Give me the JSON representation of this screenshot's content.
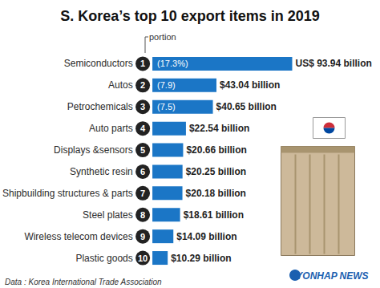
{
  "chart_data": {
    "type": "bar",
    "title": "S. Korea’s top 10 export items in 2019",
    "orientation": "horizontal",
    "categories": [
      "Semiconductors",
      "Autos",
      "Petrochemicals",
      "Auto parts",
      "Displays &sensors",
      "Synthetic resin",
      "Shipbuilding structures & parts",
      "Steel plates",
      "Wireless telecom devices",
      "Plastic goods"
    ],
    "ranks": [
      1,
      2,
      3,
      4,
      5,
      6,
      7,
      8,
      9,
      10
    ],
    "values": [
      93.94,
      43.04,
      40.65,
      22.54,
      20.66,
      20.25,
      20.18,
      18.61,
      14.09,
      10.29
    ],
    "value_labels": [
      "US$ 93.94 billion",
      "$43.04 billion",
      "$40.65 billion",
      "$22.54 billion",
      "$20.66 billion",
      "$20.25 billion",
      "$20.18 billion",
      "$18.61 billion",
      "$14.09 billion",
      "$10.29 billion"
    ],
    "portion_header": "portion",
    "portion_labels": [
      "(17.3%)",
      "(7.9)",
      "(7.5)",
      null,
      null,
      null,
      null,
      null,
      null,
      null
    ],
    "color": "#1b76c6",
    "xlim": [
      0,
      140
    ],
    "xticks": [
      0,
      140
    ],
    "grid": false,
    "tick_labels": false,
    "data_labels": true,
    "source": "Data : Korea International Trade Association",
    "logo": "YONHAP NEWS"
  }
}
